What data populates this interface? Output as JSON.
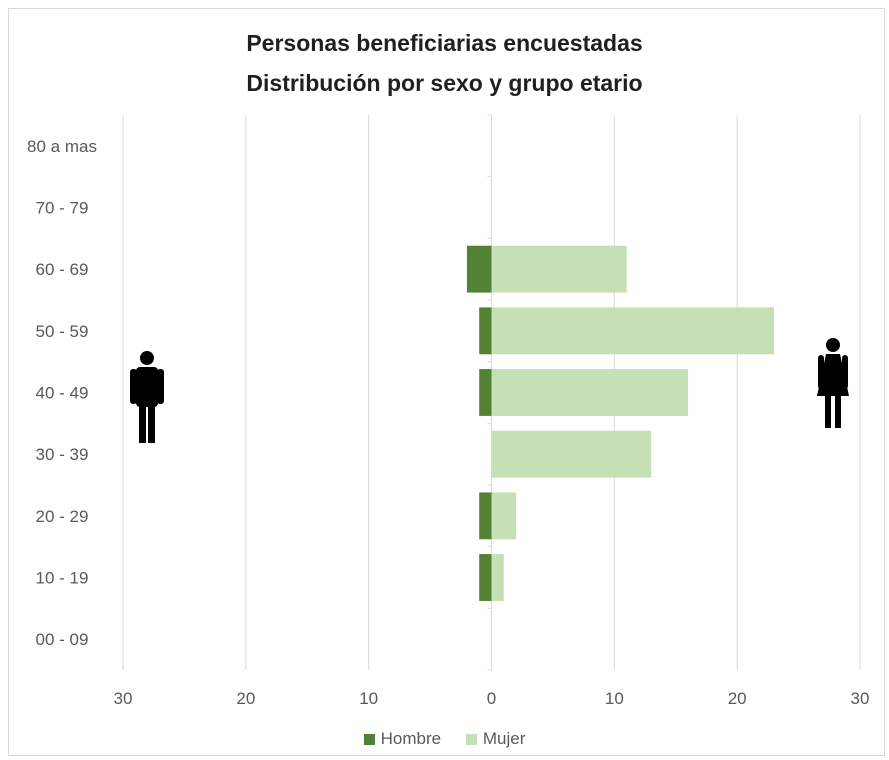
{
  "chart_data": {
    "type": "bar",
    "orientation": "horizontal-population-pyramid",
    "title_line1": "Personas beneficiarias encuestadas",
    "title_line2": "Distribución por sexo y grupo etario",
    "categories": [
      "80 a mas",
      "70 - 79",
      "60 - 69",
      "50 - 59",
      "40 - 49",
      "30 - 39",
      "20 - 29",
      "10 - 19",
      "00 - 09"
    ],
    "series": [
      {
        "name": "Hombre",
        "color": "#548235",
        "values": [
          0,
          0,
          -2,
          -1,
          -1,
          0,
          -1,
          -1,
          0
        ]
      },
      {
        "name": "Mujer",
        "color": "#c5e0b4",
        "values": [
          0,
          0,
          11,
          23,
          16,
          13,
          2,
          1,
          0
        ]
      }
    ],
    "xlim": [
      -30,
      30
    ],
    "x_tick_values": [
      -30,
      -20,
      -10,
      0,
      10,
      20,
      30
    ],
    "x_tick_labels": [
      "30",
      "20",
      "10",
      "0",
      "10",
      "20",
      "30"
    ],
    "grid": true,
    "legend_position": "bottom",
    "icons": {
      "left": "man-icon",
      "right": "woman-icon"
    }
  }
}
